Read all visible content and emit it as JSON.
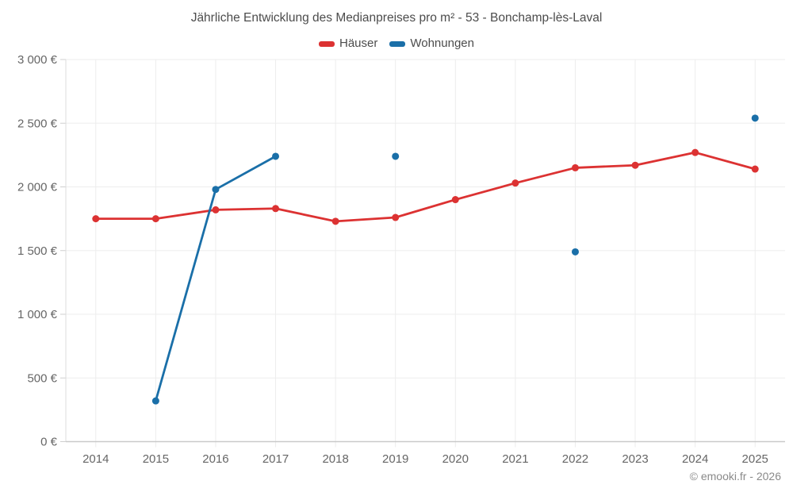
{
  "chart_data": {
    "type": "line",
    "title": "Jährliche Entwicklung des Medianpreises pro m² - 53 - Bonchamp-lès-Laval",
    "categories": [
      "2014",
      "2015",
      "2016",
      "2017",
      "2018",
      "2019",
      "2020",
      "2021",
      "2022",
      "2023",
      "2024",
      "2025"
    ],
    "series": [
      {
        "name": "Häuser",
        "color": "#dc3232",
        "values": [
          1750,
          1750,
          1820,
          1830,
          1730,
          1760,
          1900,
          2030,
          2150,
          2170,
          2270,
          2140
        ]
      },
      {
        "name": "Wohnungen",
        "color": "#1a6fa8",
        "values": [
          null,
          320,
          1980,
          2240,
          null,
          2240,
          null,
          null,
          1490,
          null,
          null,
          2540
        ]
      }
    ],
    "ylim": [
      0,
      3000
    ],
    "y_tick_step": 500,
    "y_ticks": [
      "0 €",
      "500 €",
      "1 000 €",
      "1 500 €",
      "2 000 €",
      "2 500 €",
      "3 000 €"
    ],
    "xlabel": "",
    "ylabel": "",
    "grid": true,
    "legend_position": "top",
    "colors": {
      "grid": "#ededed",
      "bottom_axis": "#c9c9c9",
      "left_axis": "#dddddd",
      "tick": "#cfcfcf",
      "tick_label": "#666666",
      "title": "#4c4c4c",
      "copyright": "#8a8a8a"
    }
  },
  "footer": {
    "copyright": "© emooki.fr - 2026"
  }
}
